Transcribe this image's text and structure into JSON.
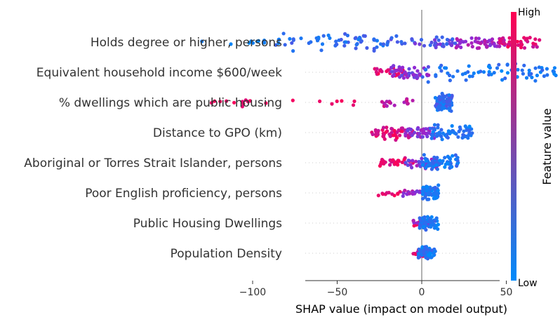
{
  "chart_data": {
    "type": "scatter",
    "subtype": "shap-beeswarm",
    "xlabel": "SHAP value (impact on model output)",
    "xlim": [
      -137,
      93
    ],
    "xticks": [
      -100,
      -50,
      0,
      50
    ],
    "tick_labels": [
      "−100",
      "−50",
      "0",
      "50"
    ],
    "colorbar": {
      "title": "Feature value",
      "high_label": "High",
      "low_label": "Low",
      "low_color": "#008afb",
      "high_color": "#ff0052"
    },
    "features": [
      {
        "name": "Holds degree or higher, persons",
        "clusters": [
          {
            "x_min": -130,
            "x_max": -90,
            "n": 10,
            "f_min": 0.0,
            "f_max": 0.08
          },
          {
            "x_min": -90,
            "x_max": -20,
            "n": 60,
            "f_min": 0.05,
            "f_max": 0.25
          },
          {
            "x_min": -20,
            "x_max": 20,
            "n": 40,
            "f_min": 0.15,
            "f_max": 0.45
          },
          {
            "x_min": 20,
            "x_max": 50,
            "n": 50,
            "f_min": 0.4,
            "f_max": 0.7
          },
          {
            "x_min": 45,
            "x_max": 70,
            "n": 40,
            "f_min": 0.7,
            "f_max": 1.0
          }
        ]
      },
      {
        "name": "Equivalent household income $600/week",
        "clusters": [
          {
            "x_min": -28,
            "x_max": -10,
            "n": 25,
            "f_min": 0.75,
            "f_max": 1.0
          },
          {
            "x_min": -18,
            "x_max": 5,
            "n": 50,
            "f_min": 0.3,
            "f_max": 0.6
          },
          {
            "x_min": 0,
            "x_max": 80,
            "n": 70,
            "f_min": 0.0,
            "f_max": 0.2
          }
        ]
      },
      {
        "name": "% dwellings which are public housing",
        "clusters": [
          {
            "x_min": -128,
            "x_max": -20,
            "n": 20,
            "f_min": 0.85,
            "f_max": 1.0
          },
          {
            "x_min": -25,
            "x_max": -5,
            "n": 18,
            "f_min": 0.55,
            "f_max": 0.85
          },
          {
            "x_min": 8,
            "x_max": 18,
            "n": 80,
            "f_min": 0.0,
            "f_max": 0.3
          }
        ]
      },
      {
        "name": "Distance to GPO (km)",
        "clusters": [
          {
            "x_min": -30,
            "x_max": -5,
            "n": 50,
            "f_min": 0.7,
            "f_max": 1.0
          },
          {
            "x_min": -10,
            "x_max": 8,
            "n": 40,
            "f_min": 0.35,
            "f_max": 0.65
          },
          {
            "x_min": 5,
            "x_max": 30,
            "n": 60,
            "f_min": 0.0,
            "f_max": 0.2
          }
        ]
      },
      {
        "name": "Aboriginal or Torres Strait Islander, persons",
        "clusters": [
          {
            "x_min": -25,
            "x_max": -5,
            "n": 30,
            "f_min": 0.75,
            "f_max": 1.0
          },
          {
            "x_min": -10,
            "x_max": 10,
            "n": 40,
            "f_min": 0.3,
            "f_max": 0.6
          },
          {
            "x_min": 0,
            "x_max": 22,
            "n": 60,
            "f_min": 0.0,
            "f_max": 0.2
          }
        ]
      },
      {
        "name": "Poor English proficiency, persons",
        "clusters": [
          {
            "x_min": -28,
            "x_max": -10,
            "n": 12,
            "f_min": 0.8,
            "f_max": 1.0
          },
          {
            "x_min": -12,
            "x_max": 2,
            "n": 20,
            "f_min": 0.4,
            "f_max": 0.7
          },
          {
            "x_min": 0,
            "x_max": 10,
            "n": 60,
            "f_min": 0.0,
            "f_max": 0.2
          }
        ]
      },
      {
        "name": "Public Housing Dwellings",
        "clusters": [
          {
            "x_min": -5,
            "x_max": 2,
            "n": 15,
            "f_min": 0.75,
            "f_max": 1.0
          },
          {
            "x_min": -5,
            "x_max": 5,
            "n": 20,
            "f_min": 0.4,
            "f_max": 0.7
          },
          {
            "x_min": -2,
            "x_max": 10,
            "n": 55,
            "f_min": 0.0,
            "f_max": 0.2
          }
        ]
      },
      {
        "name": "Population Density",
        "clusters": [
          {
            "x_min": -5,
            "x_max": 3,
            "n": 15,
            "f_min": 0.75,
            "f_max": 1.0
          },
          {
            "x_min": -3,
            "x_max": 5,
            "n": 15,
            "f_min": 0.4,
            "f_max": 0.7
          },
          {
            "x_min": -2,
            "x_max": 8,
            "n": 50,
            "f_min": 0.0,
            "f_max": 0.2
          }
        ]
      }
    ]
  }
}
